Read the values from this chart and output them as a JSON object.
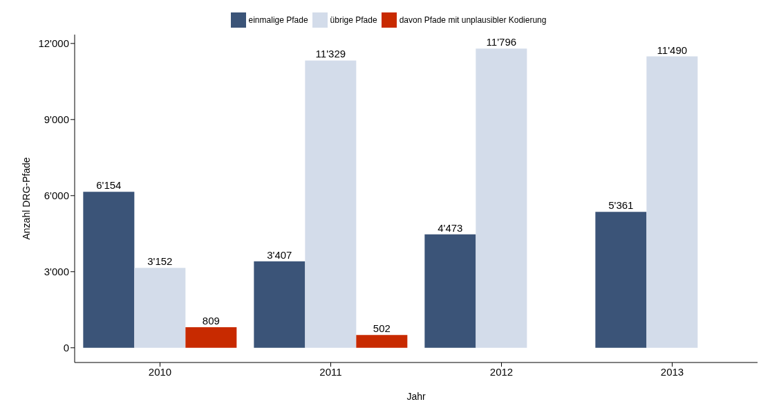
{
  "chart_data": {
    "type": "bar",
    "xlabel": "Jahr",
    "ylabel": "Anzahl DRG-Pfade",
    "categories": [
      "2010",
      "2011",
      "2012",
      "2013"
    ],
    "series": [
      {
        "name": "einmalige Pfade",
        "color": "#3b5478",
        "values": [
          6154,
          3407,
          4473,
          5361
        ],
        "value_labels": [
          "6'154",
          "3'407",
          "4'473",
          "5'361"
        ]
      },
      {
        "name": "übrige Pfade",
        "color": "#d3dcea",
        "values": [
          3152,
          11329,
          11796,
          11490
        ],
        "value_labels": [
          "3'152",
          "11'329",
          "11'796",
          "11'490"
        ]
      },
      {
        "name": "davon Pfade mit unplausibler Kodierung",
        "color": "#c82a00",
        "values": [
          809,
          502,
          null,
          null
        ],
        "value_labels": [
          "809",
          "502",
          null,
          null
        ]
      }
    ],
    "ylim": [
      -580,
      12350
    ],
    "yticks": [
      {
        "value": 0,
        "label": "0"
      },
      {
        "value": 3000,
        "label": "3'000"
      },
      {
        "value": 6000,
        "label": "6'000"
      },
      {
        "value": 9000,
        "label": "9'000"
      },
      {
        "value": 12000,
        "label": "12'000"
      }
    ],
    "grid": false,
    "legend": "top"
  }
}
